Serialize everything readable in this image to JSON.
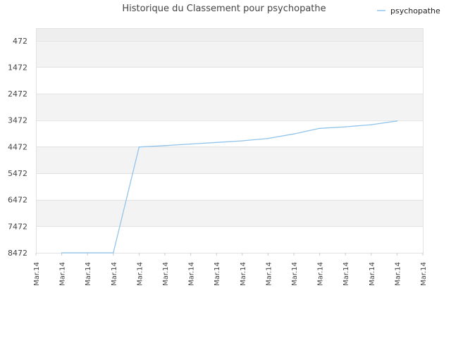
{
  "chart_data": {
    "type": "line",
    "title": "Historique du Classement pour psychopathe",
    "xlabel": "",
    "ylabel": "",
    "y_inverted": true,
    "ylim": [
      8472,
      0
    ],
    "y_ticks": [
      "472",
      "1472",
      "2472",
      "3472",
      "4472",
      "5472",
      "6472",
      "7472",
      "8472"
    ],
    "x_ticks": [
      "Mar.14",
      "Mar.14",
      "Mar.14",
      "Mar.14",
      "Mar.14",
      "Mar.14",
      "Mar.14",
      "Mar.14",
      "Mar.14",
      "Mar.14",
      "Mar.14",
      "Mar.14",
      "Mar.14",
      "Mar.14",
      "Mar.14",
      "Mar.14"
    ],
    "grid": true,
    "legend_position": "top-right",
    "series": [
      {
        "name": "psychopathe",
        "color": "#90c4ec",
        "x_index": [
          1,
          2,
          3,
          4,
          5,
          6,
          7,
          8,
          9,
          10,
          11,
          12,
          13,
          14
        ],
        "values": [
          8472,
          8472,
          8472,
          4480,
          4430,
          4370,
          4310,
          4250,
          4160,
          3990,
          3780,
          3720,
          3640,
          3500
        ]
      }
    ]
  }
}
